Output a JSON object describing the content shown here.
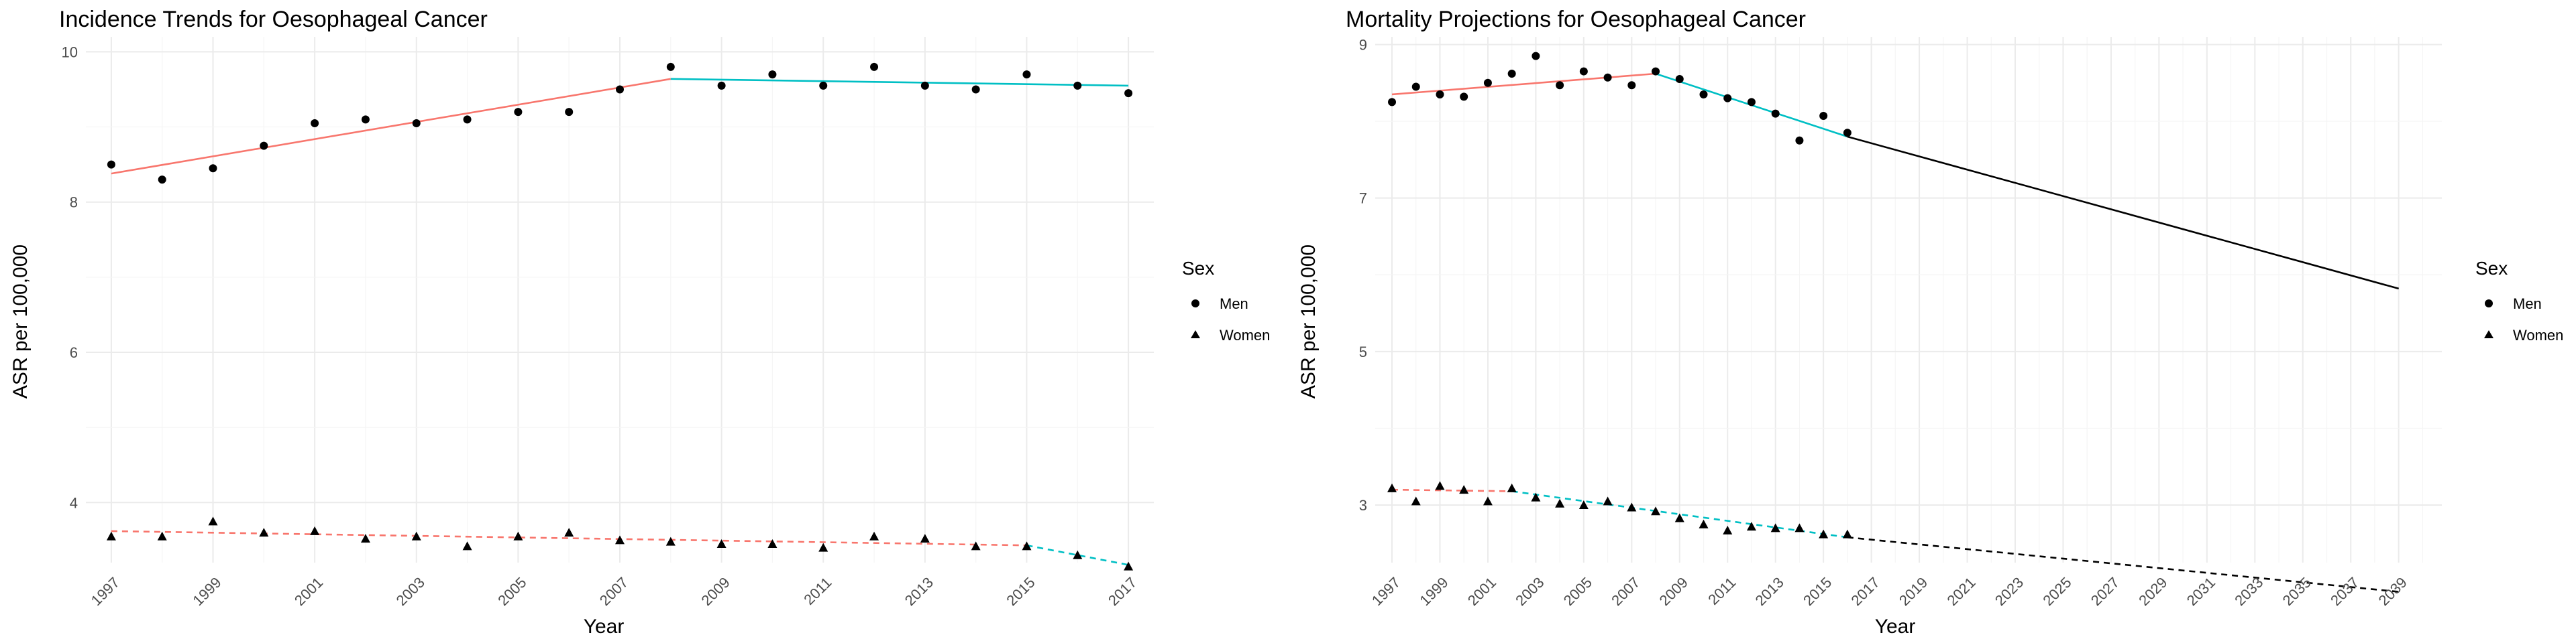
{
  "colors": {
    "segment1": "#F8766D",
    "segment2": "#00BFC4",
    "projection": "#000000",
    "points": "#000000"
  },
  "legend": {
    "title": "Sex",
    "items": [
      {
        "label": "Men",
        "shape": "circle"
      },
      {
        "label": "Women",
        "shape": "triangle"
      }
    ]
  },
  "chart_data": [
    {
      "type": "scatter",
      "title": "Incidence Trends for Oesophageal Cancer",
      "xlabel": "Year",
      "ylabel": "ASR per 100,000",
      "xlim": [
        1996.5,
        2017.5
      ],
      "ylim": [
        3.2,
        10.2
      ],
      "x_ticks": [
        1997,
        1999,
        2001,
        2003,
        2005,
        2007,
        2009,
        2011,
        2013,
        2015,
        2017
      ],
      "y_ticks": [
        4,
        6,
        8,
        10
      ],
      "grid": true,
      "legend_position": "right",
      "series": [
        {
          "name": "Men",
          "shape": "circle",
          "line": "solid",
          "x": [
            1997,
            1998,
            1999,
            2000,
            2001,
            2002,
            2003,
            2004,
            2005,
            2006,
            2007,
            2008,
            2009,
            2010,
            2011,
            2012,
            2013,
            2014,
            2015,
            2016,
            2017
          ],
          "y": [
            8.5,
            8.3,
            8.45,
            8.75,
            9.05,
            9.1,
            9.05,
            9.1,
            9.2,
            9.2,
            9.5,
            9.8,
            9.55,
            9.7,
            9.55,
            9.8,
            9.55,
            9.5,
            9.7,
            9.55,
            9.45
          ],
          "fit": [
            {
              "from": [
                1997,
                8.38
              ],
              "to": [
                2008,
                9.64
              ],
              "color_key": "segment1"
            },
            {
              "from": [
                2008,
                9.64
              ],
              "to": [
                2017,
                9.55
              ],
              "color_key": "segment2"
            }
          ]
        },
        {
          "name": "Women",
          "shape": "triangle",
          "line": "dashed",
          "x": [
            1997,
            1998,
            1999,
            2000,
            2001,
            2002,
            2003,
            2004,
            2005,
            2006,
            2007,
            2008,
            2009,
            2010,
            2011,
            2012,
            2013,
            2014,
            2015,
            2016,
            2017
          ],
          "y": [
            3.55,
            3.55,
            3.75,
            3.6,
            3.62,
            3.52,
            3.55,
            3.42,
            3.55,
            3.6,
            3.5,
            3.48,
            3.45,
            3.45,
            3.4,
            3.55,
            3.52,
            3.42,
            3.42,
            3.3,
            3.15
          ],
          "fit": [
            {
              "from": [
                1997,
                3.62
              ],
              "to": [
                2015,
                3.43
              ],
              "color_key": "segment1"
            },
            {
              "from": [
                2015,
                3.43
              ],
              "to": [
                2017,
                3.17
              ],
              "color_key": "segment2"
            }
          ]
        }
      ]
    },
    {
      "type": "scatter",
      "title": "Mortality Projections for Oesophageal Cancer",
      "xlabel": "Year",
      "ylabel": "ASR per 100,000",
      "xlim": [
        1996.3,
        2040.8
      ],
      "ylim": [
        2.25,
        9.1
      ],
      "x_ticks": [
        1997,
        1999,
        2001,
        2003,
        2005,
        2007,
        2009,
        2011,
        2013,
        2015,
        2017,
        2019,
        2021,
        2023,
        2025,
        2027,
        2029,
        2031,
        2033,
        2035,
        2037,
        2039
      ],
      "y_ticks": [
        3,
        5,
        7,
        9
      ],
      "grid": true,
      "legend_position": "right",
      "series": [
        {
          "name": "Men",
          "shape": "circle",
          "line": "solid",
          "x": [
            1997,
            1998,
            1999,
            2000,
            2001,
            2002,
            2003,
            2004,
            2005,
            2006,
            2007,
            2008,
            2009,
            2010,
            2011,
            2012,
            2013,
            2014,
            2015,
            2016
          ],
          "y": [
            8.25,
            8.45,
            8.35,
            8.32,
            8.5,
            8.62,
            8.85,
            8.47,
            8.65,
            8.57,
            8.47,
            8.65,
            8.55,
            8.35,
            8.3,
            8.25,
            8.1,
            7.75,
            8.07,
            7.85
          ],
          "fit": [
            {
              "from": [
                1997,
                8.35
              ],
              "to": [
                2008,
                8.62
              ],
              "color_key": "segment1"
            },
            {
              "from": [
                2008,
                8.62
              ],
              "to": [
                2016,
                7.8
              ],
              "color_key": "segment2"
            },
            {
              "from": [
                2016,
                7.8
              ],
              "to": [
                2039,
                5.82
              ],
              "color_key": "projection"
            }
          ]
        },
        {
          "name": "Women",
          "shape": "triangle",
          "line": "dashed",
          "x": [
            1997,
            1998,
            1999,
            2000,
            2001,
            2002,
            2003,
            2004,
            2005,
            2006,
            2007,
            2008,
            2009,
            2010,
            2011,
            2012,
            2013,
            2014,
            2015,
            2016
          ],
          "y": [
            3.22,
            3.05,
            3.25,
            3.2,
            3.05,
            3.22,
            3.1,
            3.02,
            3.0,
            3.05,
            2.97,
            2.92,
            2.83,
            2.75,
            2.67,
            2.72,
            2.7,
            2.7,
            2.62,
            2.62
          ],
          "fit": [
            {
              "from": [
                1997,
                3.2
              ],
              "to": [
                2002,
                3.18
              ],
              "color_key": "segment1"
            },
            {
              "from": [
                2002,
                3.18
              ],
              "to": [
                2016,
                2.58
              ],
              "color_key": "segment2"
            },
            {
              "from": [
                2016,
                2.58
              ],
              "to": [
                2039,
                1.87
              ],
              "color_key": "projection"
            }
          ]
        }
      ]
    }
  ]
}
